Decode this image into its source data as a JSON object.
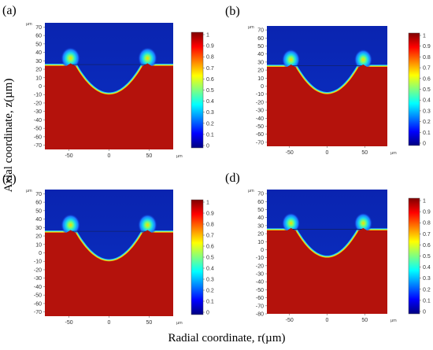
{
  "figure": {
    "ylabel": "Axial coordinate, z(µm)",
    "xlabel": "Radial coordinate, r(µm)",
    "unit": "µm"
  },
  "chart_data": [
    {
      "panel": "(a)",
      "type": "heatmap",
      "unit": "µm",
      "x_ticks": [
        -50,
        0,
        50
      ],
      "y_ticks": [
        70,
        60,
        50,
        40,
        30,
        20,
        10,
        0,
        -10,
        -20,
        -30,
        -40,
        -50,
        -60,
        -70
      ],
      "xlim": [
        -80,
        80
      ],
      "ylim": [
        -75,
        75
      ],
      "colorbar_ticks": [
        1,
        0.9,
        0.8,
        0.7,
        0.6,
        0.5,
        0.4,
        0.3,
        0.2,
        0.1,
        0
      ],
      "colorbar_range": [
        0,
        1
      ],
      "crater": {
        "surface_z": 24,
        "bottom_z": -10,
        "rim_r": 48,
        "rim_peak_z": 33
      }
    },
    {
      "panel": "(b)",
      "type": "heatmap",
      "unit": "µm",
      "x_ticks": [
        -50,
        0,
        50
      ],
      "y_ticks": [
        70,
        60,
        50,
        40,
        30,
        20,
        10,
        0,
        -10,
        -20,
        -30,
        -40,
        -50,
        -60,
        -70
      ],
      "xlim": [
        -80,
        80
      ],
      "ylim": [
        -75,
        75
      ],
      "colorbar_ticks": [
        1,
        0.9,
        0.8,
        0.7,
        0.6,
        0.5,
        0.4,
        0.3,
        0.2,
        0.1,
        0
      ],
      "colorbar_range": [
        0,
        1
      ],
      "crater": {
        "surface_z": 24,
        "bottom_z": -10,
        "rim_r": 48,
        "rim_peak_z": 33
      }
    },
    {
      "panel": "(c)",
      "type": "heatmap",
      "unit": "µm",
      "x_ticks": [
        -50,
        0,
        50
      ],
      "y_ticks": [
        70,
        60,
        50,
        40,
        30,
        20,
        10,
        0,
        -10,
        -20,
        -30,
        -40,
        -50,
        -60,
        -70
      ],
      "xlim": [
        -80,
        80
      ],
      "ylim": [
        -75,
        75
      ],
      "colorbar_ticks": [
        1,
        0.9,
        0.8,
        0.7,
        0.6,
        0.5,
        0.4,
        0.3,
        0.2,
        0.1,
        0
      ],
      "colorbar_range": [
        0,
        1
      ],
      "crater": {
        "surface_z": 24,
        "bottom_z": -10,
        "rim_r": 48,
        "rim_peak_z": 33
      }
    },
    {
      "panel": "(d)",
      "type": "heatmap",
      "unit": "µm",
      "x_ticks": [
        -50,
        0,
        50
      ],
      "y_ticks": [
        70,
        60,
        50,
        40,
        30,
        20,
        10,
        0,
        -10,
        -20,
        -30,
        -40,
        -50,
        -60,
        -70,
        -80
      ],
      "xlim": [
        -80,
        80
      ],
      "ylim": [
        -80,
        75
      ],
      "colorbar_ticks": [
        1,
        0.9,
        0.8,
        0.7,
        0.6,
        0.5,
        0.4,
        0.3,
        0.2,
        0.1,
        0
      ],
      "colorbar_range": [
        0,
        1
      ],
      "crater": {
        "surface_z": 24,
        "bottom_z": -10,
        "rim_r": 48,
        "rim_peak_z": 33
      }
    }
  ],
  "colors": {
    "top": "#0a2ab4",
    "bottom": "#b4120c",
    "colormap": [
      "#00007f",
      "#0000ff",
      "#0080ff",
      "#00ffff",
      "#80ff80",
      "#ffff00",
      "#ff8000",
      "#ff0000",
      "#7f0000"
    ]
  }
}
